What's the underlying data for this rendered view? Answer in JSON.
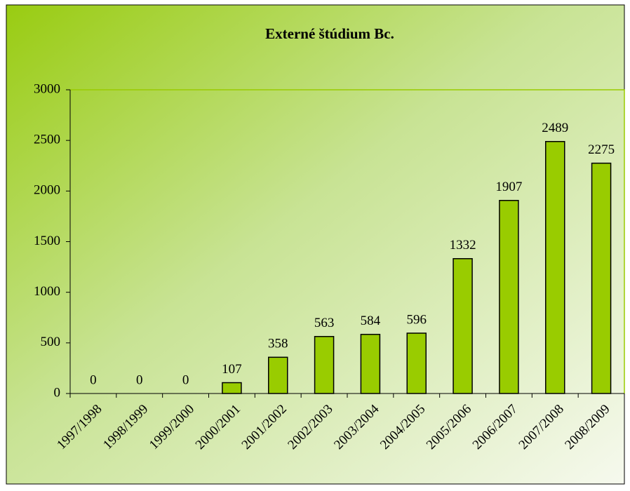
{
  "chart_data": {
    "type": "bar",
    "title": "Externé štúdium Bc.",
    "categories": [
      "1997/1998",
      "1998/1999",
      "1999/2000",
      "2000/2001",
      "2001/2002",
      "2002/2003",
      "2003/2004",
      "2004/2005",
      "2005/2006",
      "2006/2007",
      "2007/2008",
      "2008/2009"
    ],
    "values": [
      0,
      0,
      0,
      107,
      358,
      563,
      584,
      596,
      1332,
      1907,
      2489,
      2275
    ],
    "color": "#99cc00",
    "ylim": [
      0,
      3000
    ],
    "yticks": [
      0,
      500,
      1000,
      1500,
      2000,
      2500,
      3000
    ],
    "grid": false
  }
}
